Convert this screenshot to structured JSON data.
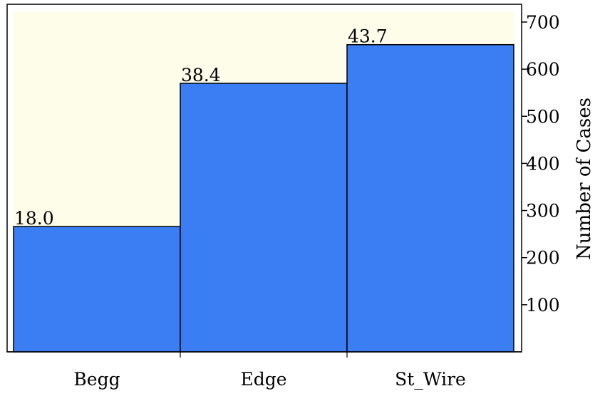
{
  "chart_data": {
    "type": "bar",
    "categories": [
      "Begg",
      "Edge",
      "St_Wire"
    ],
    "values": [
      266,
      570,
      652
    ],
    "data_labels": [
      "18.0",
      "38.4",
      "43.7"
    ],
    "ylabel": "Number of Cases",
    "y_axis_position": "right",
    "ylim": [
      0,
      730
    ],
    "yticks": [
      100,
      200,
      300,
      400,
      500,
      600,
      700
    ],
    "ytick_labels": [
      "100",
      "200",
      "300",
      "400",
      "500",
      "600",
      "700"
    ],
    "grid": false,
    "legend": "none",
    "colors": {
      "bar": "#3b7df2",
      "bar_edge": "#000000",
      "plot_bg": "#fdfdea"
    }
  }
}
